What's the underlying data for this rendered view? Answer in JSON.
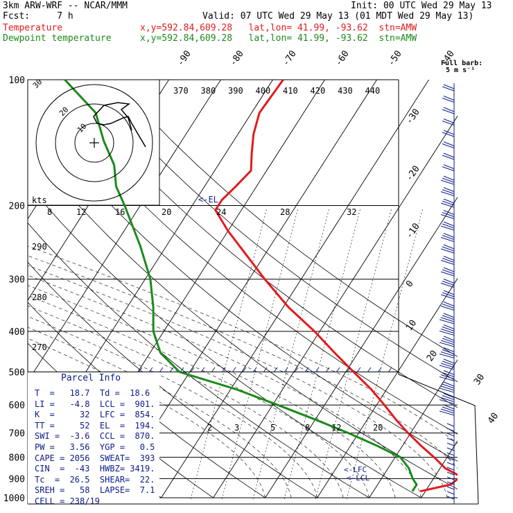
{
  "header": {
    "model": "3km ARW-WRF -- NCAR/MMM",
    "init": "Init: 00 UTC Wed 29 May 13",
    "fcst": "Fcst:     7 h",
    "valid": "Valid: 07 UTC Wed 29 May 13 (01 MDT Wed 29 May 13)",
    "temp_label": "Temperature",
    "dew_label": "Dewpoint temperature",
    "temp_loc": "x,y=592.84,609.28   lat,lon= 41.99, -93.62  stn=AMW",
    "dew_loc": "x,y=592.84,609.28   lat,lon= 41.99, -93.62  stn=AMW"
  },
  "colors": {
    "temperature": "#e31a1c",
    "dewpoint": "#1a8a1a",
    "barbs": "#0a1a8a",
    "info": "#0a1a8a"
  },
  "barb_legend": {
    "title": "Full barb:",
    "units": "5 m s⁻¹"
  },
  "hodograph_label": "kts",
  "hodograph_rings": [
    "30",
    "20",
    "10"
  ],
  "el_marker": "<-EL",
  "lfc_marker": "<-LFC",
  "lcl_marker": "<-LCL",
  "chart_data": {
    "type": "line",
    "title": "",
    "diagram": "skew-T log-p",
    "pressure_levels": [
      100,
      200,
      300,
      400,
      500,
      600,
      700,
      800,
      900,
      1000
    ],
    "isotherm_labels": [
      "-90",
      "-80",
      "-70",
      "-60",
      "-50",
      "-40",
      "-30",
      "-20",
      "-10",
      "0",
      "10",
      "20",
      "30",
      "40"
    ],
    "theta_labels_upper": [
      "370",
      "380",
      "390",
      "400",
      "410",
      "420",
      "430",
      "440"
    ],
    "theta_labels_left": [
      "290",
      "280",
      "270"
    ],
    "mixing_ratio_upper": [
      "8",
      "12",
      "16",
      "20",
      "24",
      "28",
      "32"
    ],
    "mixing_ratio_lower": [
      "2",
      "3",
      "5",
      "8",
      "12",
      "20"
    ],
    "series": [
      {
        "name": "Temperature",
        "color": "#e31a1c",
        "points": [
          {
            "p": 965,
            "t": 19.0
          },
          {
            "p": 930,
            "t": 24.0
          },
          {
            "p": 890,
            "t": 25.0
          },
          {
            "p": 850,
            "t": 21.0
          },
          {
            "p": 800,
            "t": 17.5
          },
          {
            "p": 750,
            "t": 13.5
          },
          {
            "p": 700,
            "t": 9.5
          },
          {
            "p": 650,
            "t": 5.5
          },
          {
            "p": 600,
            "t": 1.5
          },
          {
            "p": 550,
            "t": -3.0
          },
          {
            "p": 500,
            "t": -8.5
          },
          {
            "p": 450,
            "t": -14.5
          },
          {
            "p": 400,
            "t": -21.0
          },
          {
            "p": 350,
            "t": -29.0
          },
          {
            "p": 300,
            "t": -37.0
          },
          {
            "p": 260,
            "t": -44.0
          },
          {
            "p": 230,
            "t": -50.0
          },
          {
            "p": 205,
            "t": -55.0
          },
          {
            "p": 194,
            "t": -55.0
          },
          {
            "p": 180,
            "t": -54.0
          },
          {
            "p": 165,
            "t": -53.0
          },
          {
            "p": 150,
            "t": -55.0
          },
          {
            "p": 135,
            "t": -57.0
          },
          {
            "p": 120,
            "t": -58.5
          },
          {
            "p": 100,
            "t": -58.0
          }
        ]
      },
      {
        "name": "Dewpoint temperature",
        "color": "#1a8a1a",
        "points": [
          {
            "p": 965,
            "t": 17.5
          },
          {
            "p": 930,
            "t": 17.5
          },
          {
            "p": 900,
            "t": 16.0
          },
          {
            "p": 850,
            "t": 14.0
          },
          {
            "p": 800,
            "t": 11.0
          },
          {
            "p": 750,
            "t": 5.0
          },
          {
            "p": 700,
            "t": -2.0
          },
          {
            "p": 650,
            "t": -10.0
          },
          {
            "p": 600,
            "t": -19.0
          },
          {
            "p": 550,
            "t": -29.0
          },
          {
            "p": 500,
            "t": -42.0
          },
          {
            "p": 450,
            "t": -48.0
          },
          {
            "p": 400,
            "t": -52.0
          },
          {
            "p": 350,
            "t": -55.0
          },
          {
            "p": 300,
            "t": -59.0
          },
          {
            "p": 250,
            "t": -65.0
          },
          {
            "p": 200,
            "t": -73.0
          },
          {
            "p": 180,
            "t": -77.0
          },
          {
            "p": 160,
            "t": -80.0
          },
          {
            "p": 140,
            "t": -85.0
          },
          {
            "p": 120,
            "t": -90.0
          },
          {
            "p": 100,
            "t": -100.0
          }
        ]
      }
    ],
    "markers": [
      {
        "name": "EL",
        "p": 194
      },
      {
        "name": "LFC",
        "p": 854
      },
      {
        "name": "LCL",
        "p": 901
      }
    ]
  },
  "parcel_info": {
    "title": "Parcel Info",
    "rows": [
      "T  =   18.7  Td =  18.6",
      "LI =   -4.8  LCL =  901.",
      "K  =     32  LFC =  854.",
      "TT =     52  EL  =  194.",
      "SWI =  -3.6  CCL =  870.",
      "PW =   3.56  YGP =   0.5",
      "CAPE = 2056  SWEAT=  393",
      "CIN  =  -43  HWBZ= 3419.",
      "Tc  =  26.5  SHEAR=  22.",
      "SREH =   58  LAPSE=  7.1",
      "CELL = 238/19"
    ]
  }
}
